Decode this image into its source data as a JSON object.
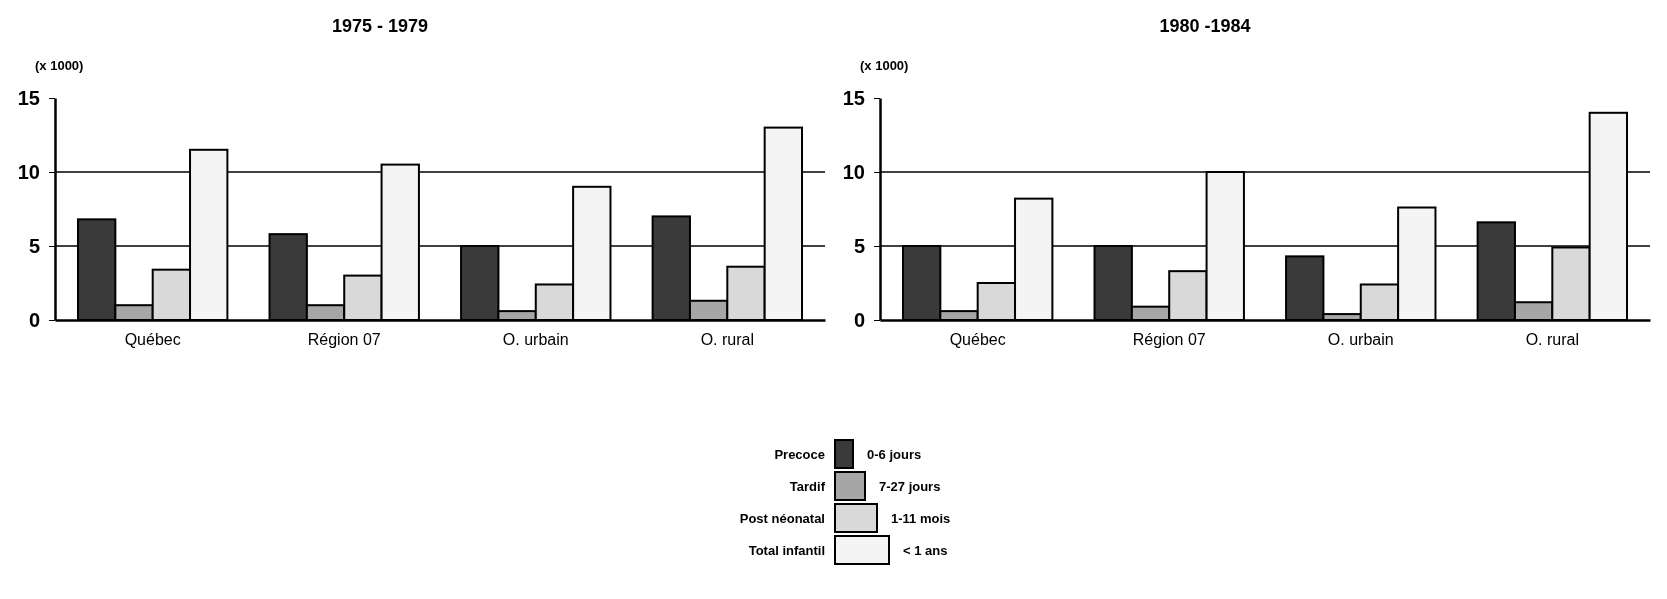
{
  "chart_data": [
    {
      "type": "bar",
      "title": "1975 - 1979",
      "ylabel": "(x 1000)",
      "categories": [
        "Québec",
        "Région 07",
        "O. urbain",
        "O. rural"
      ],
      "ylim": [
        0,
        15
      ],
      "yticks": [
        0,
        5,
        10,
        15
      ],
      "grid": "y",
      "legend": "bottom",
      "annotations": [
        "0-6 jours",
        "7-27 jours",
        "1-11 mois",
        "< 1 ans"
      ],
      "series": [
        {
          "name": "Precoce",
          "color": "#3a3a3a",
          "values": [
            6.8,
            5.8,
            5.0,
            7.0
          ]
        },
        {
          "name": "Tardif",
          "color": "#a6a6a6",
          "values": [
            1.0,
            1.0,
            0.6,
            1.3
          ]
        },
        {
          "name": "Post néonatal",
          "color": "#d9d9d9",
          "values": [
            3.4,
            3.0,
            2.4,
            3.6
          ]
        },
        {
          "name": "Total infantil",
          "color": "#f4f4f4",
          "values": [
            11.5,
            10.5,
            9.0,
            13.0
          ]
        }
      ]
    },
    {
      "type": "bar",
      "title": "1980 -1984",
      "ylabel": "(x 1000)",
      "categories": [
        "Québec",
        "Région 07",
        "O. urbain",
        "O. rural"
      ],
      "ylim": [
        0,
        15
      ],
      "yticks": [
        0,
        5,
        10,
        15
      ],
      "grid": "y",
      "series": [
        {
          "color": "#3a3a3a",
          "values": [
            5.0,
            5.0,
            4.3,
            6.6
          ]
        },
        {
          "color": "#a6a6a6",
          "values": [
            0.6,
            0.9,
            0.4,
            1.2
          ]
        },
        {
          "color": "#d9d9d9",
          "values": [
            2.5,
            3.3,
            2.4,
            4.9
          ]
        },
        {
          "color": "#f4f4f4",
          "values": [
            8.2,
            10.0,
            7.6,
            14.0
          ]
        }
      ]
    }
  ]
}
